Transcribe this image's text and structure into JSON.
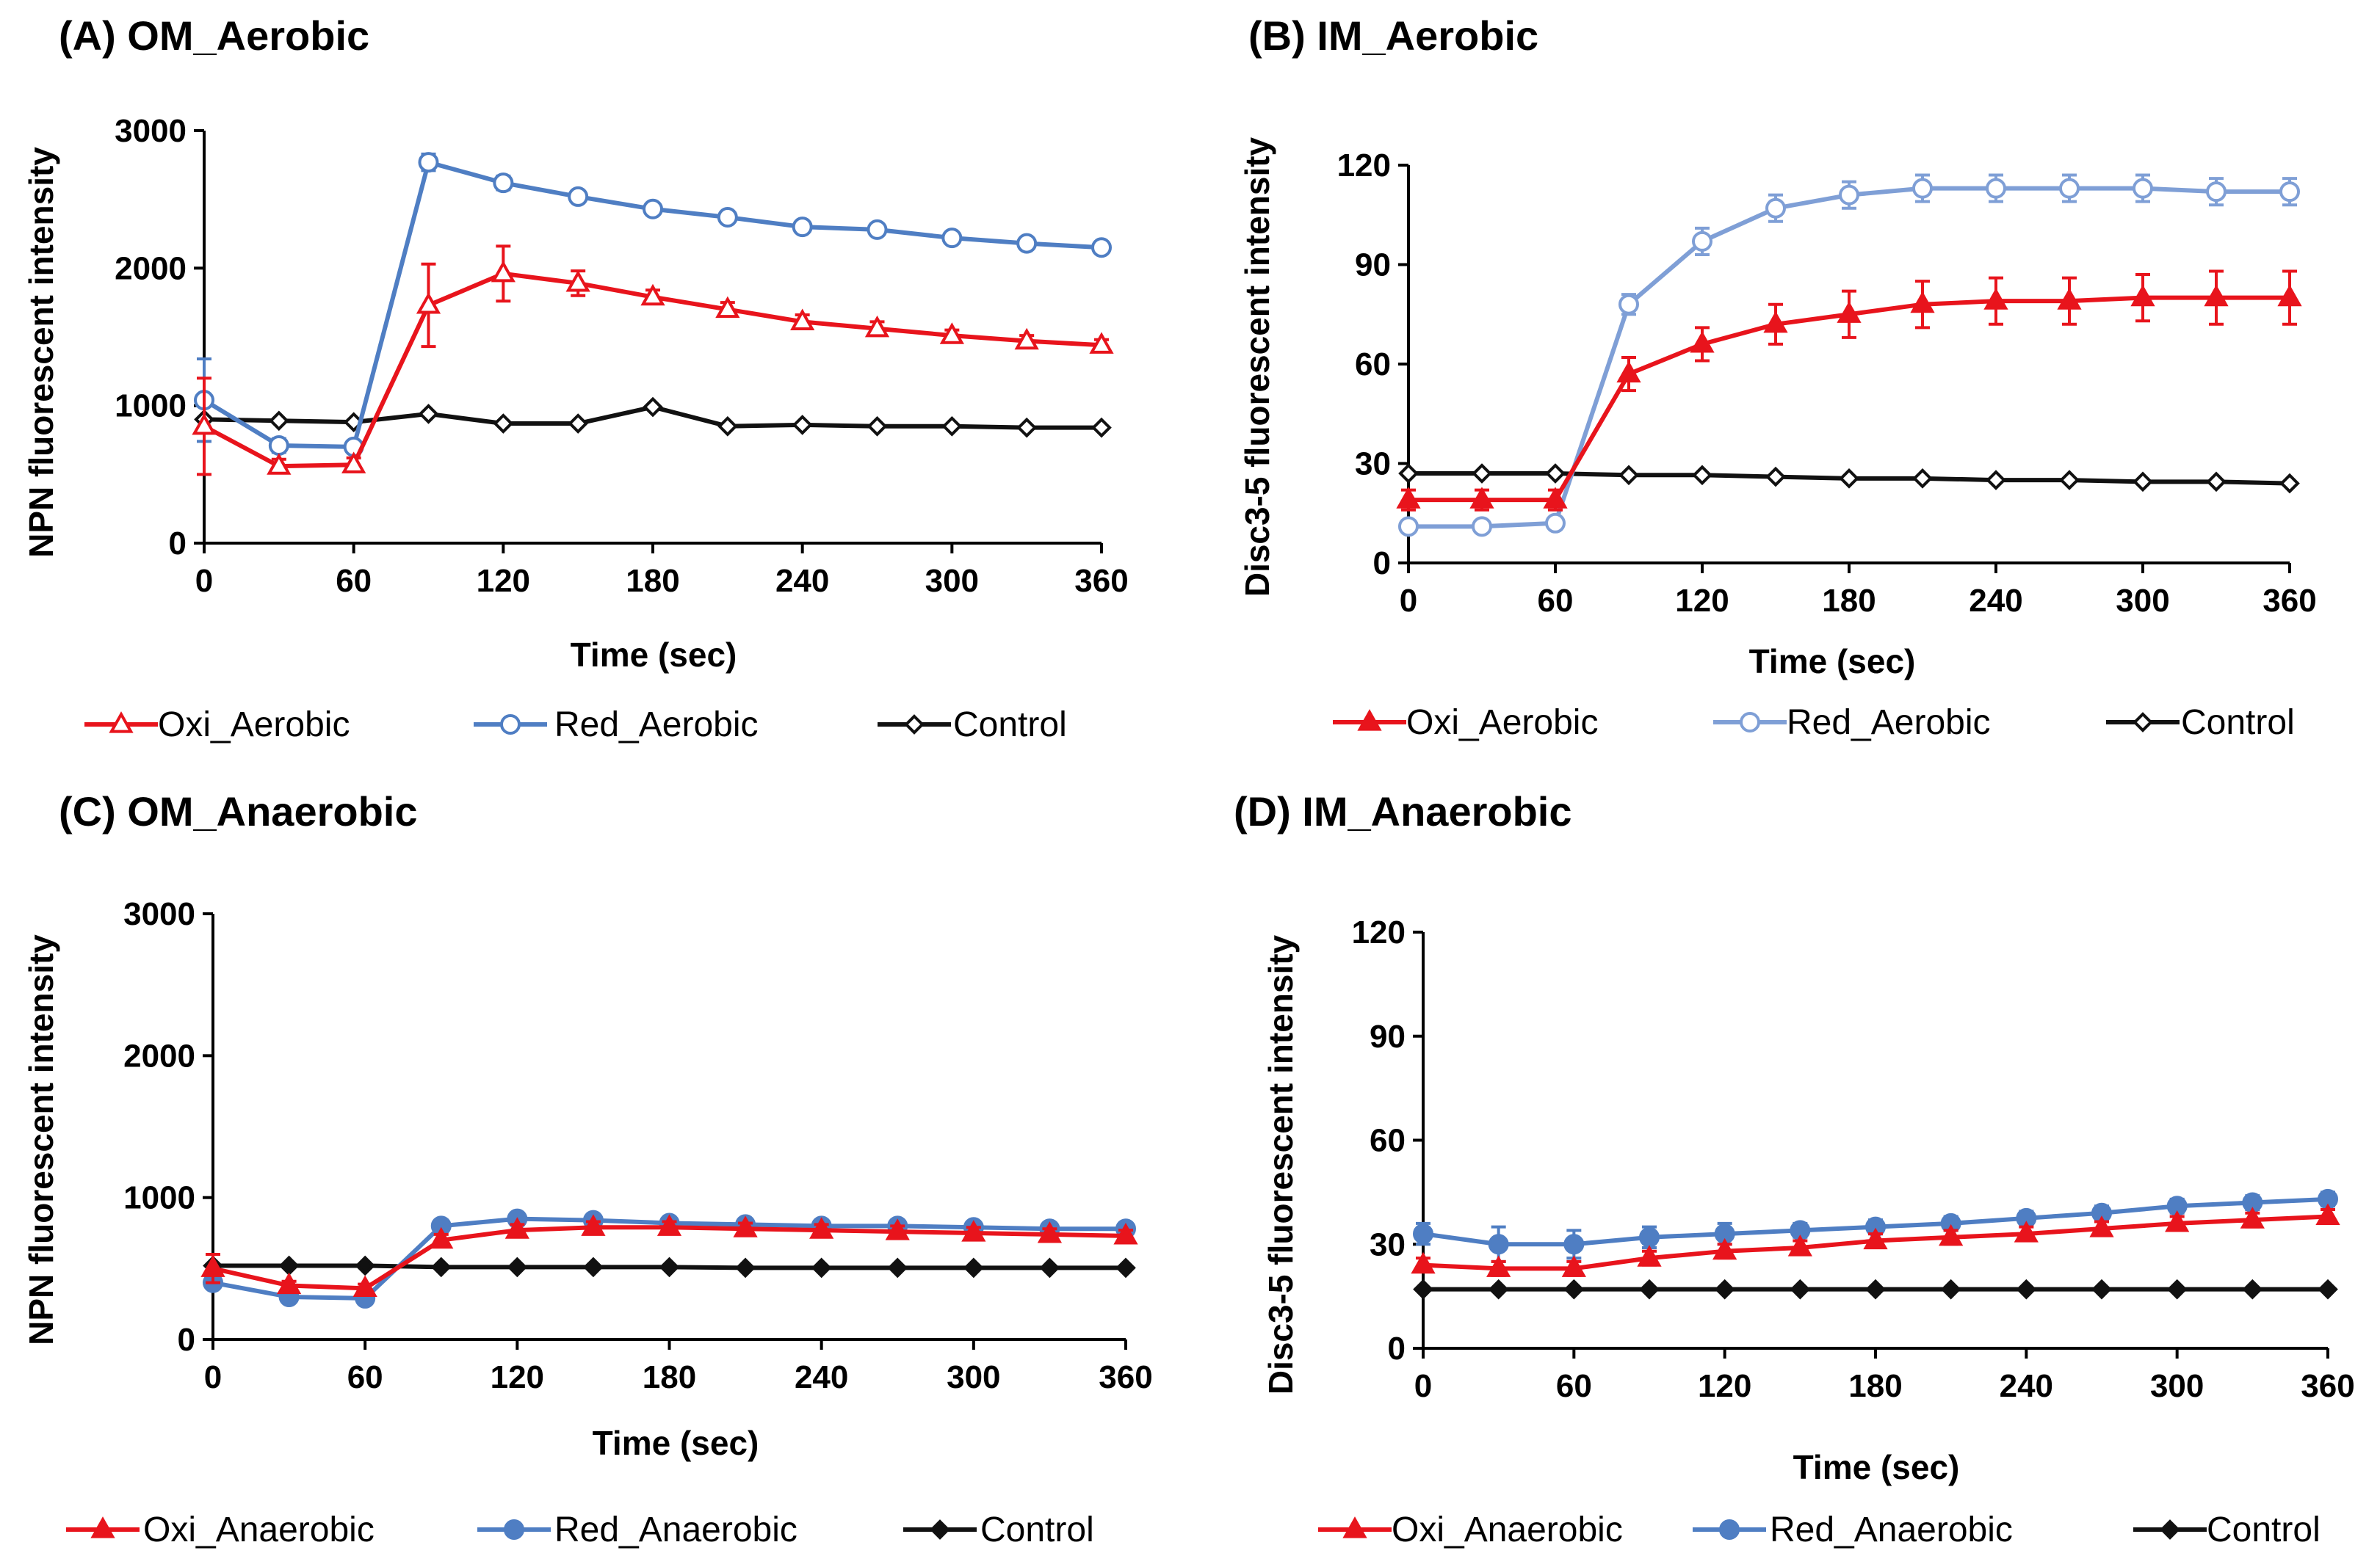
{
  "colors": {
    "oxi": "#e8141c",
    "red": "#4f7ec3",
    "red_light": "#7f9fd6",
    "control": "#111111",
    "axis": "#000000"
  },
  "chart_data": [
    {
      "id": "A",
      "type": "line",
      "title": "(A) OM_Aerobic",
      "xlabel": "Time (sec)",
      "ylabel": "NPN fluorescent intensity",
      "xlim": [
        0,
        360
      ],
      "ylim": [
        0,
        3000
      ],
      "xticks": [
        0,
        60,
        120,
        180,
        240,
        300,
        360
      ],
      "yticks": [
        0,
        1000,
        2000,
        3000
      ],
      "x": [
        0,
        30,
        60,
        90,
        120,
        150,
        180,
        210,
        240,
        270,
        300,
        330,
        360
      ],
      "series": [
        {
          "name": "Oxi_Aerobic",
          "color": "#e8141c",
          "marker": "triangle-open",
          "values": [
            850,
            560,
            570,
            1730,
            1960,
            1890,
            1790,
            1700,
            1610,
            1560,
            1510,
            1470,
            1440
          ],
          "errors": [
            350,
            50,
            50,
            300,
            200,
            90,
            50,
            50,
            50,
            50,
            40,
            40,
            40
          ]
        },
        {
          "name": "Red_Aerobic",
          "color": "#4f7ec3",
          "marker": "circle-open",
          "values": [
            1040,
            710,
            700,
            2770,
            2620,
            2520,
            2430,
            2370,
            2300,
            2280,
            2220,
            2180,
            2150
          ],
          "errors": [
            300,
            50,
            40,
            60,
            50,
            40,
            40,
            40,
            40,
            30,
            30,
            30,
            30
          ]
        },
        {
          "name": "Control",
          "color": "#111111",
          "marker": "diamond-open",
          "values": [
            900,
            890,
            880,
            940,
            870,
            870,
            990,
            850,
            860,
            850,
            850,
            840,
            840
          ],
          "errors": [
            0,
            0,
            0,
            0,
            0,
            0,
            0,
            0,
            0,
            0,
            0,
            0,
            0
          ]
        }
      ]
    },
    {
      "id": "B",
      "type": "line",
      "title": "(B) IM_Aerobic",
      "xlabel": "Time (sec)",
      "ylabel": "Disc3-5 fluorescent intensity",
      "xlim": [
        0,
        360
      ],
      "ylim": [
        0,
        120
      ],
      "xticks": [
        0,
        60,
        120,
        180,
        240,
        300,
        360
      ],
      "yticks": [
        0,
        30,
        60,
        90,
        120
      ],
      "x": [
        0,
        30,
        60,
        90,
        120,
        150,
        180,
        210,
        240,
        270,
        300,
        330,
        360
      ],
      "series": [
        {
          "name": "Oxi_Aerobic",
          "color": "#e8141c",
          "marker": "triangle-filled",
          "values": [
            19,
            19,
            19,
            57,
            66,
            72,
            75,
            78,
            79,
            79,
            80,
            80,
            80
          ],
          "errors": [
            3,
            3,
            3,
            5,
            5,
            6,
            7,
            7,
            7,
            7,
            7,
            8,
            8
          ]
        },
        {
          "name": "Red_Aerobic",
          "color": "#7f9fd6",
          "marker": "circle-open",
          "values": [
            11,
            11,
            12,
            78,
            97,
            107,
            111,
            113,
            113,
            113,
            113,
            112,
            112
          ],
          "errors": [
            1,
            1,
            1,
            3,
            4,
            4,
            4,
            4,
            4,
            4,
            4,
            4,
            4
          ]
        },
        {
          "name": "Control",
          "color": "#111111",
          "marker": "diamond-open",
          "values": [
            27,
            27,
            27,
            26.5,
            26.5,
            26,
            25.5,
            25.5,
            25,
            25,
            24.5,
            24.5,
            24
          ],
          "errors": [
            0,
            0,
            0,
            0,
            0,
            0,
            0,
            0,
            0,
            0,
            0,
            0,
            0
          ]
        }
      ]
    },
    {
      "id": "C",
      "type": "line",
      "title": "(C) OM_Anaerobic",
      "xlabel": "Time (sec)",
      "ylabel": "NPN fluorescent intensity",
      "xlim": [
        0,
        360
      ],
      "ylim": [
        0,
        3000
      ],
      "xticks": [
        0,
        60,
        120,
        180,
        240,
        300,
        360
      ],
      "yticks": [
        0,
        1000,
        2000,
        3000
      ],
      "x": [
        0,
        30,
        60,
        90,
        120,
        150,
        180,
        210,
        240,
        270,
        300,
        330,
        360
      ],
      "series": [
        {
          "name": "Oxi_Anaerobic",
          "color": "#e8141c",
          "marker": "triangle-filled",
          "values": [
            500,
            380,
            360,
            700,
            770,
            790,
            790,
            780,
            770,
            760,
            750,
            740,
            730
          ],
          "errors": [
            100,
            30,
            30,
            40,
            40,
            40,
            40,
            40,
            40,
            40,
            40,
            40,
            40
          ]
        },
        {
          "name": "Red_Anaerobic",
          "color": "#4f7ec3",
          "marker": "circle-filled",
          "values": [
            400,
            300,
            290,
            800,
            850,
            840,
            820,
            810,
            800,
            800,
            790,
            780,
            780
          ],
          "errors": [
            40,
            30,
            30,
            40,
            40,
            40,
            40,
            40,
            40,
            40,
            40,
            40,
            40
          ]
        },
        {
          "name": "Control",
          "color": "#111111",
          "marker": "diamond-filled",
          "values": [
            520,
            520,
            520,
            510,
            510,
            510,
            510,
            505,
            505,
            505,
            505,
            505,
            505
          ],
          "errors": [
            0,
            0,
            0,
            0,
            0,
            0,
            0,
            0,
            0,
            0,
            0,
            0,
            0
          ]
        }
      ]
    },
    {
      "id": "D",
      "type": "line",
      "title": "(D) IM_Anaerobic",
      "xlabel": "Time (sec)",
      "ylabel": "Disc3-5 fluorescent intensity",
      "xlim": [
        0,
        360
      ],
      "ylim": [
        0,
        120
      ],
      "xticks": [
        0,
        60,
        120,
        180,
        240,
        300,
        360
      ],
      "yticks": [
        0,
        30,
        60,
        90,
        120
      ],
      "x": [
        0,
        30,
        60,
        90,
        120,
        150,
        180,
        210,
        240,
        270,
        300,
        330,
        360
      ],
      "series": [
        {
          "name": "Oxi_Anaerobic",
          "color": "#e8141c",
          "marker": "triangle-filled",
          "values": [
            24,
            23,
            23,
            26,
            28,
            29,
            31,
            32,
            33,
            34.5,
            36,
            37,
            38
          ],
          "errors": [
            2,
            2,
            2,
            2,
            2,
            2,
            2,
            2,
            2,
            2,
            2,
            2,
            2
          ]
        },
        {
          "name": "Red_Anaerobic",
          "color": "#4f7ec3",
          "marker": "circle-filled",
          "values": [
            33,
            30,
            30,
            32,
            33,
            34,
            35,
            36,
            37.5,
            39,
            41,
            42,
            43
          ],
          "errors": [
            3,
            5,
            4,
            3,
            3,
            2,
            2,
            2,
            2,
            2,
            2,
            2,
            2
          ]
        },
        {
          "name": "Control",
          "color": "#111111",
          "marker": "diamond-filled",
          "values": [
            17,
            17,
            17,
            17,
            17,
            17,
            17,
            17,
            17,
            17,
            17,
            17,
            17
          ],
          "errors": [
            0,
            0,
            0,
            0,
            0,
            0,
            0,
            0,
            0,
            0,
            0,
            0,
            0
          ]
        }
      ]
    }
  ]
}
